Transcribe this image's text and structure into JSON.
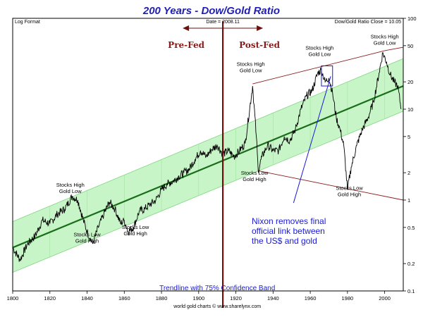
{
  "chart_data": {
    "type": "line",
    "title": "200 Years - Dow/Gold Ratio",
    "corner_left": "Log Format",
    "date_label": "Date = 2008.11",
    "close_label": "Dow/Gold Ratio Close = 10.05",
    "footer": "world gold charts © www.sharelynx.com",
    "trend_caption": "Trendline with 75% Confidence Band",
    "pre_fed": "Pre-Fed",
    "post_fed": "Post-Fed",
    "fed_year": 1913,
    "nixon_text": [
      "Nixon removes final",
      "official link between",
      "the US$ and gold"
    ],
    "nixon_box": {
      "x": [
        1966,
        1972
      ],
      "y": [
        18,
        30
      ]
    },
    "nixon_arrow_from": {
      "x": 1951,
      "y": 0.93
    },
    "nixon_arrow_to": {
      "x": 1971,
      "y": 23
    },
    "annotations": [
      {
        "lines": [
          "Stocks High",
          "Gold Low"
        ],
        "x": 1831,
        "y": 1.4
      },
      {
        "lines": [
          "Stocks Low",
          "Gold High"
        ],
        "x": 1840,
        "y": 0.4
      },
      {
        "lines": [
          "Stocks Low",
          "Gold High"
        ],
        "x": 1866,
        "y": 0.48
      },
      {
        "lines": [
          "Stocks High",
          "Gold Low"
        ],
        "x": 1928,
        "y": 30
      },
      {
        "lines": [
          "Stocks High",
          "Gold Low"
        ],
        "x": 1965,
        "y": 45
      },
      {
        "lines": [
          "Stocks High",
          "Gold Low"
        ],
        "x": 2000,
        "y": 60
      },
      {
        "lines": [
          "Stocks Low",
          "Gold High"
        ],
        "x": 1930,
        "y": 1.9
      },
      {
        "lines": [
          "Stocks Low",
          "Gold High"
        ],
        "x": 1981,
        "y": 1.3
      }
    ],
    "xlim": [
      1800,
      2010
    ],
    "ylim": [
      0.1,
      100
    ],
    "yscale": "log",
    "xticks": [
      1800,
      1820,
      1840,
      1860,
      1880,
      1900,
      1920,
      1940,
      1960,
      1980,
      2000
    ],
    "yticks": [
      0.1,
      0.2,
      0.5,
      1,
      2,
      5,
      10,
      20,
      50,
      100
    ],
    "ytick_labels": [
      "0.1",
      "0.2",
      "0.5",
      "1",
      "2",
      "5",
      "10",
      "20",
      "50",
      "100"
    ],
    "trendline": {
      "x": [
        1800,
        2010
      ],
      "y": [
        0.3,
        18
      ]
    },
    "band": {
      "lower": [
        0.16,
        9.5
      ],
      "upper": [
        0.58,
        36
      ]
    },
    "channel": [
      {
        "x": [
          1929,
          2000
        ],
        "y": [
          19,
          44
        ]
      },
      {
        "x": [
          2000,
          2010
        ],
        "y": [
          44,
          48
        ]
      },
      {
        "x": [
          1932,
          2010
        ],
        "y": [
          2.1,
          1.0
        ]
      }
    ],
    "series": [
      {
        "x": [
          1800,
          1804,
          1808,
          1812,
          1816,
          1820,
          1824,
          1828,
          1832,
          1835,
          1838,
          1840,
          1843,
          1846,
          1849,
          1852,
          1855,
          1858,
          1860,
          1862,
          1865,
          1868,
          1871,
          1874,
          1877,
          1880,
          1883,
          1886,
          1889,
          1892,
          1895,
          1898,
          1901,
          1904,
          1907,
          1910,
          1913,
          1916,
          1919,
          1922,
          1925,
          1929,
          1931,
          1932,
          1934,
          1937,
          1940,
          1943,
          1946,
          1949,
          1952,
          1955,
          1958,
          1961,
          1964,
          1966,
          1968,
          1970,
          1972,
          1974,
          1976,
          1978,
          1980,
          1982,
          1985,
          1988,
          1991,
          1994,
          1997,
          1999,
          2001,
          2003,
          2005,
          2007,
          2008.9
        ],
        "y": [
          0.3,
          0.22,
          0.33,
          0.4,
          0.6,
          0.55,
          0.7,
          0.8,
          1.1,
          1.0,
          0.6,
          0.45,
          0.33,
          0.5,
          0.7,
          0.95,
          0.8,
          0.55,
          0.6,
          0.45,
          0.5,
          0.75,
          0.8,
          0.9,
          1.0,
          1.3,
          1.5,
          1.6,
          1.8,
          2.0,
          2.2,
          2.8,
          3.5,
          3.0,
          3.6,
          4.0,
          3.2,
          3.5,
          3.0,
          3.5,
          4.2,
          18.0,
          5.0,
          2.1,
          3.0,
          4.0,
          3.5,
          3.5,
          5.0,
          4.5,
          6.0,
          10.0,
          14.0,
          16.0,
          25.0,
          27.0,
          20.0,
          22.0,
          15.0,
          8.0,
          6.0,
          4.0,
          1.3,
          2.3,
          4.0,
          6.0,
          8.0,
          12.0,
          25.0,
          42.0,
          33.0,
          24.0,
          20.0,
          18.0,
          10.05
        ]
      }
    ],
    "colors": {
      "title": "#1f1fb5",
      "trend": "#1a6e1a",
      "band": "#c8f5c8",
      "band_grid": "#9fe39f",
      "series": "#000000",
      "fed_line": "#6b0f0f",
      "channel": "#8b1a1a",
      "nixon": "#1a1ad9"
    }
  }
}
